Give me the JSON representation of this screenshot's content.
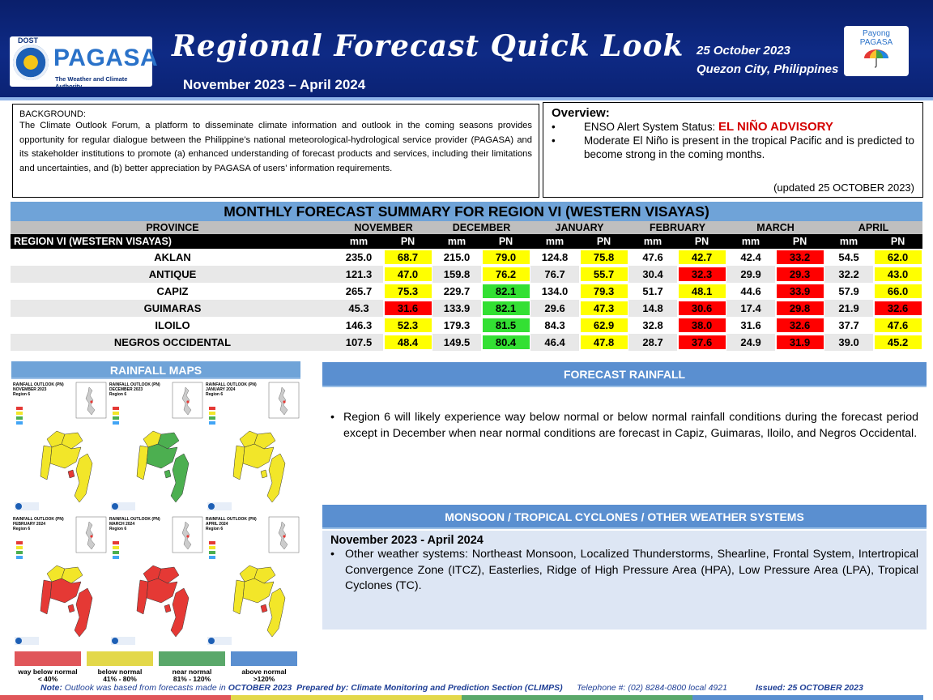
{
  "header": {
    "dost": "DOST",
    "logo_text": "PAGASA",
    "logo_sub": "The Weather and Climate Authority",
    "title": "Regional Forecast Quick Look",
    "period": "November 2023 – April 2024",
    "date": "25 October 2023",
    "place": "Quezon City, Philippines",
    "payong_line1": "Payong",
    "payong_line2": "PAGASA"
  },
  "background": {
    "heading": "BACKGROUND:",
    "text": "The Climate Outlook Forum, a platform to disseminate climate information and outlook in the coming seasons provides opportunity for regular dialogue between the Philippine’s national meteorological-hydrological service provider (PAGASA) and its stakeholder institutions to promote (a) enhanced understanding of forecast products and services, including their limitations and uncertainties, and (b) better appreciation by PAGASA of users’ information requirements."
  },
  "overview": {
    "heading": "Overview:",
    "bullet": "•",
    "enso_label": "ENSO Alert System Status: ",
    "enso_status": "EL NIÑO ADVISORY",
    "item2": "Moderate El Niño is present in the tropical Pacific and is predicted to become strong in the coming months.",
    "updated": "(updated 25 OCTOBER 2023)"
  },
  "table": {
    "title": "MONTHLY FORECAST SUMMARY FOR REGION VI (WESTERN VISAYAS)",
    "province_header": "PROVINCE",
    "region_label": "REGION VI (WESTERN VISAYAS)",
    "mm_label": "mm",
    "pn_label": "PN",
    "months": [
      "NOVEMBER",
      "DECEMBER",
      "JANUARY",
      "FEBRUARY",
      "MARCH",
      "APRIL"
    ],
    "rows": [
      {
        "province": "AKLAN",
        "cells": [
          [
            "235.0",
            "68.7",
            "y"
          ],
          [
            "215.0",
            "79.0",
            "y"
          ],
          [
            "124.8",
            "75.8",
            "y"
          ],
          [
            "47.6",
            "42.7",
            "y"
          ],
          [
            "42.4",
            "33.2",
            "r"
          ],
          [
            "54.5",
            "62.0",
            "y"
          ]
        ]
      },
      {
        "province": "ANTIQUE",
        "cells": [
          [
            "121.3",
            "47.0",
            "y"
          ],
          [
            "159.8",
            "76.2",
            "y"
          ],
          [
            "76.7",
            "55.7",
            "y"
          ],
          [
            "30.4",
            "32.3",
            "r"
          ],
          [
            "29.9",
            "29.3",
            "r"
          ],
          [
            "32.2",
            "43.0",
            "y"
          ]
        ]
      },
      {
        "province": "CAPIZ",
        "cells": [
          [
            "265.7",
            "75.3",
            "y"
          ],
          [
            "229.7",
            "82.1",
            "g"
          ],
          [
            "134.0",
            "79.3",
            "y"
          ],
          [
            "51.7",
            "48.1",
            "y"
          ],
          [
            "44.6",
            "33.9",
            "r"
          ],
          [
            "57.9",
            "66.0",
            "y"
          ]
        ]
      },
      {
        "province": "GUIMARAS",
        "cells": [
          [
            "45.3",
            "31.6",
            "r"
          ],
          [
            "133.9",
            "82.1",
            "g"
          ],
          [
            "29.6",
            "47.3",
            "y"
          ],
          [
            "14.8",
            "30.6",
            "r"
          ],
          [
            "17.4",
            "29.8",
            "r"
          ],
          [
            "21.9",
            "32.6",
            "r"
          ]
        ]
      },
      {
        "province": "ILOILO",
        "cells": [
          [
            "146.3",
            "52.3",
            "y"
          ],
          [
            "179.3",
            "81.5",
            "g"
          ],
          [
            "84.3",
            "62.9",
            "y"
          ],
          [
            "32.8",
            "38.0",
            "r"
          ],
          [
            "31.6",
            "32.6",
            "r"
          ],
          [
            "37.7",
            "47.6",
            "y"
          ]
        ]
      },
      {
        "province": "NEGROS OCCIDENTAL",
        "cells": [
          [
            "107.5",
            "48.4",
            "y"
          ],
          [
            "149.5",
            "80.4",
            "g"
          ],
          [
            "46.4",
            "47.8",
            "y"
          ],
          [
            "28.7",
            "37.6",
            "r"
          ],
          [
            "24.9",
            "31.9",
            "r"
          ],
          [
            "39.0",
            "45.2",
            "y"
          ]
        ]
      }
    ]
  },
  "maps": {
    "heading": "RAINFALL MAPS",
    "cards": [
      {
        "title": "RAINFALL OUTLOOK (PN)",
        "month": "NOVEMBER 2023",
        "region": "Region 6"
      },
      {
        "title": "RAINFALL OUTLOOK (PN)",
        "month": "DECEMBER 2023",
        "region": "Region 6"
      },
      {
        "title": "RAINFALL OUTLOOK (PN)",
        "month": "JANUARY 2024",
        "region": "Region 6"
      },
      {
        "title": "RAINFALL OUTLOOK (PN)",
        "month": "FEBRUARY 2024",
        "region": "Region 6"
      },
      {
        "title": "RAINFALL OUTLOOK (PN)",
        "month": "MARCH 2024",
        "region": "Region 6"
      },
      {
        "title": "RAINFALL OUTLOOK (PN)",
        "month": "APRIL 2024",
        "region": "Region 6"
      }
    ]
  },
  "legend": [
    {
      "label": "way below normal",
      "range": "< 40%",
      "color": "#e0565a"
    },
    {
      "label": "below normal",
      "range": "41%  -  80%",
      "color": "#e3d84a"
    },
    {
      "label": "near normal",
      "range": "81% - 120%",
      "color": "#5aa86a"
    },
    {
      "label": "above normal",
      "range": ">120%",
      "color": "#5a8fd0"
    }
  ],
  "forecast_rainfall": {
    "heading": "FORECAST RAINFALL",
    "bullet": "•",
    "text": "Region 6 will likely experience way below normal or below normal rainfall conditions during the forecast period except in December when near normal conditions are forecast in Capiz, Guimaras, Iloilo, and Negros Occidental."
  },
  "monsoon": {
    "heading": "MONSOON  / TROPICAL CYCLONES / OTHER WEATHER SYSTEMS",
    "subheading": "November 2023 - April 2024",
    "bullet": "•",
    "text": "Other weather systems: Northeast Monsoon, Localized Thunderstorms, Shearline, Frontal System, Intertropical Convergence Zone (ITCZ), Easterlies, Ridge of High Pressure Area (HPA), Low Pressure Area (LPA), Tropical Cyclones (TC)."
  },
  "footer": {
    "note_label": "Note:",
    "note": " Outlook was based from forecasts made in ",
    "note_month": "OCTOBER 2023",
    "prepared": "Prepared by: Climate Monitoring and Prediction Section (CLIMPS)",
    "telephone": "Telephone #: (02) 8284-0800 local 4921",
    "issued": "Issued: 25 OCTOBER 2023"
  },
  "colors": {
    "header_blue": "#0e2a85",
    "panel_blue": "#5a8fd0",
    "pn_yellow": "#ffff00",
    "pn_red": "#ff0000",
    "pn_green": "#33e033",
    "alert_red": "#d40000"
  }
}
